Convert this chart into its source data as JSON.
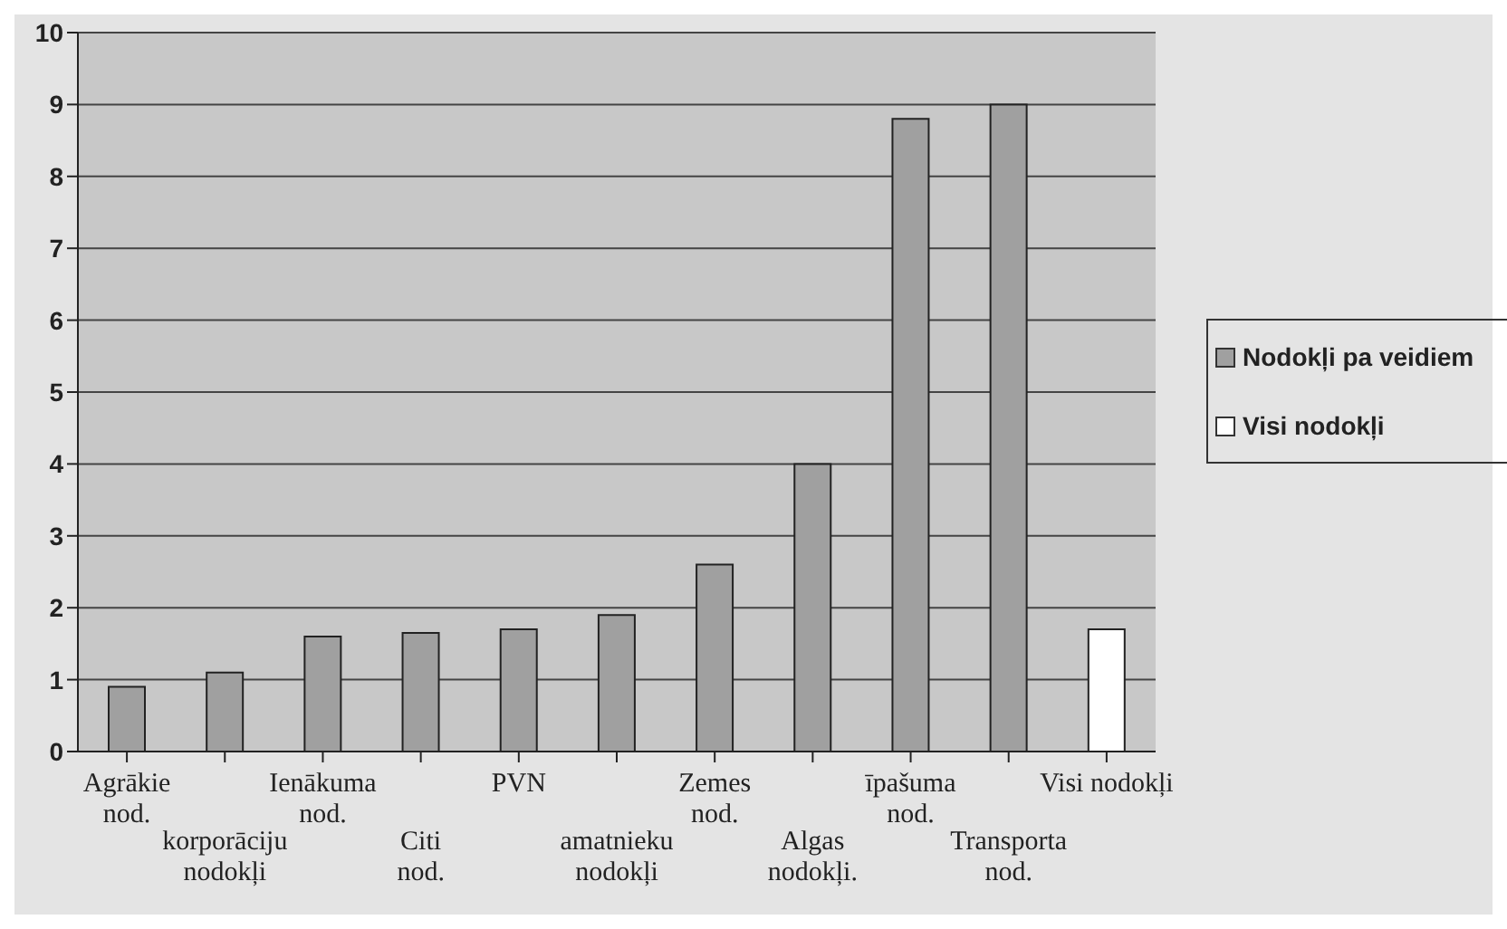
{
  "chart_data": {
    "type": "bar",
    "categories": [
      "Agrākie\nnod.",
      "korporāciju\nnodokļi",
      "Ienākuma\nnod.",
      "Citi\nnod.",
      "PVN",
      "amatnieku\nnodokļi",
      "Zemes\nnod.",
      "Algas\nnodokļi.",
      "īpašuma\nnod.",
      "Transporta\nnod.",
      "Visi nodokļi"
    ],
    "series": [
      {
        "name": "Nodokļi pa veidiem",
        "color": "#a0a0a0",
        "values": [
          0.9,
          1.1,
          1.6,
          1.65,
          1.7,
          1.9,
          2.6,
          4.0,
          8.8,
          9.0,
          null
        ]
      },
      {
        "name": "Visi nodokļi",
        "color": "#ffffff",
        "values": [
          null,
          null,
          null,
          null,
          null,
          null,
          null,
          null,
          null,
          null,
          1.7
        ]
      }
    ],
    "ylim": [
      0,
      10
    ],
    "yticks": [
      0,
      1,
      2,
      3,
      4,
      5,
      6,
      7,
      8,
      9,
      10
    ],
    "grid": "y",
    "legend": "right"
  }
}
